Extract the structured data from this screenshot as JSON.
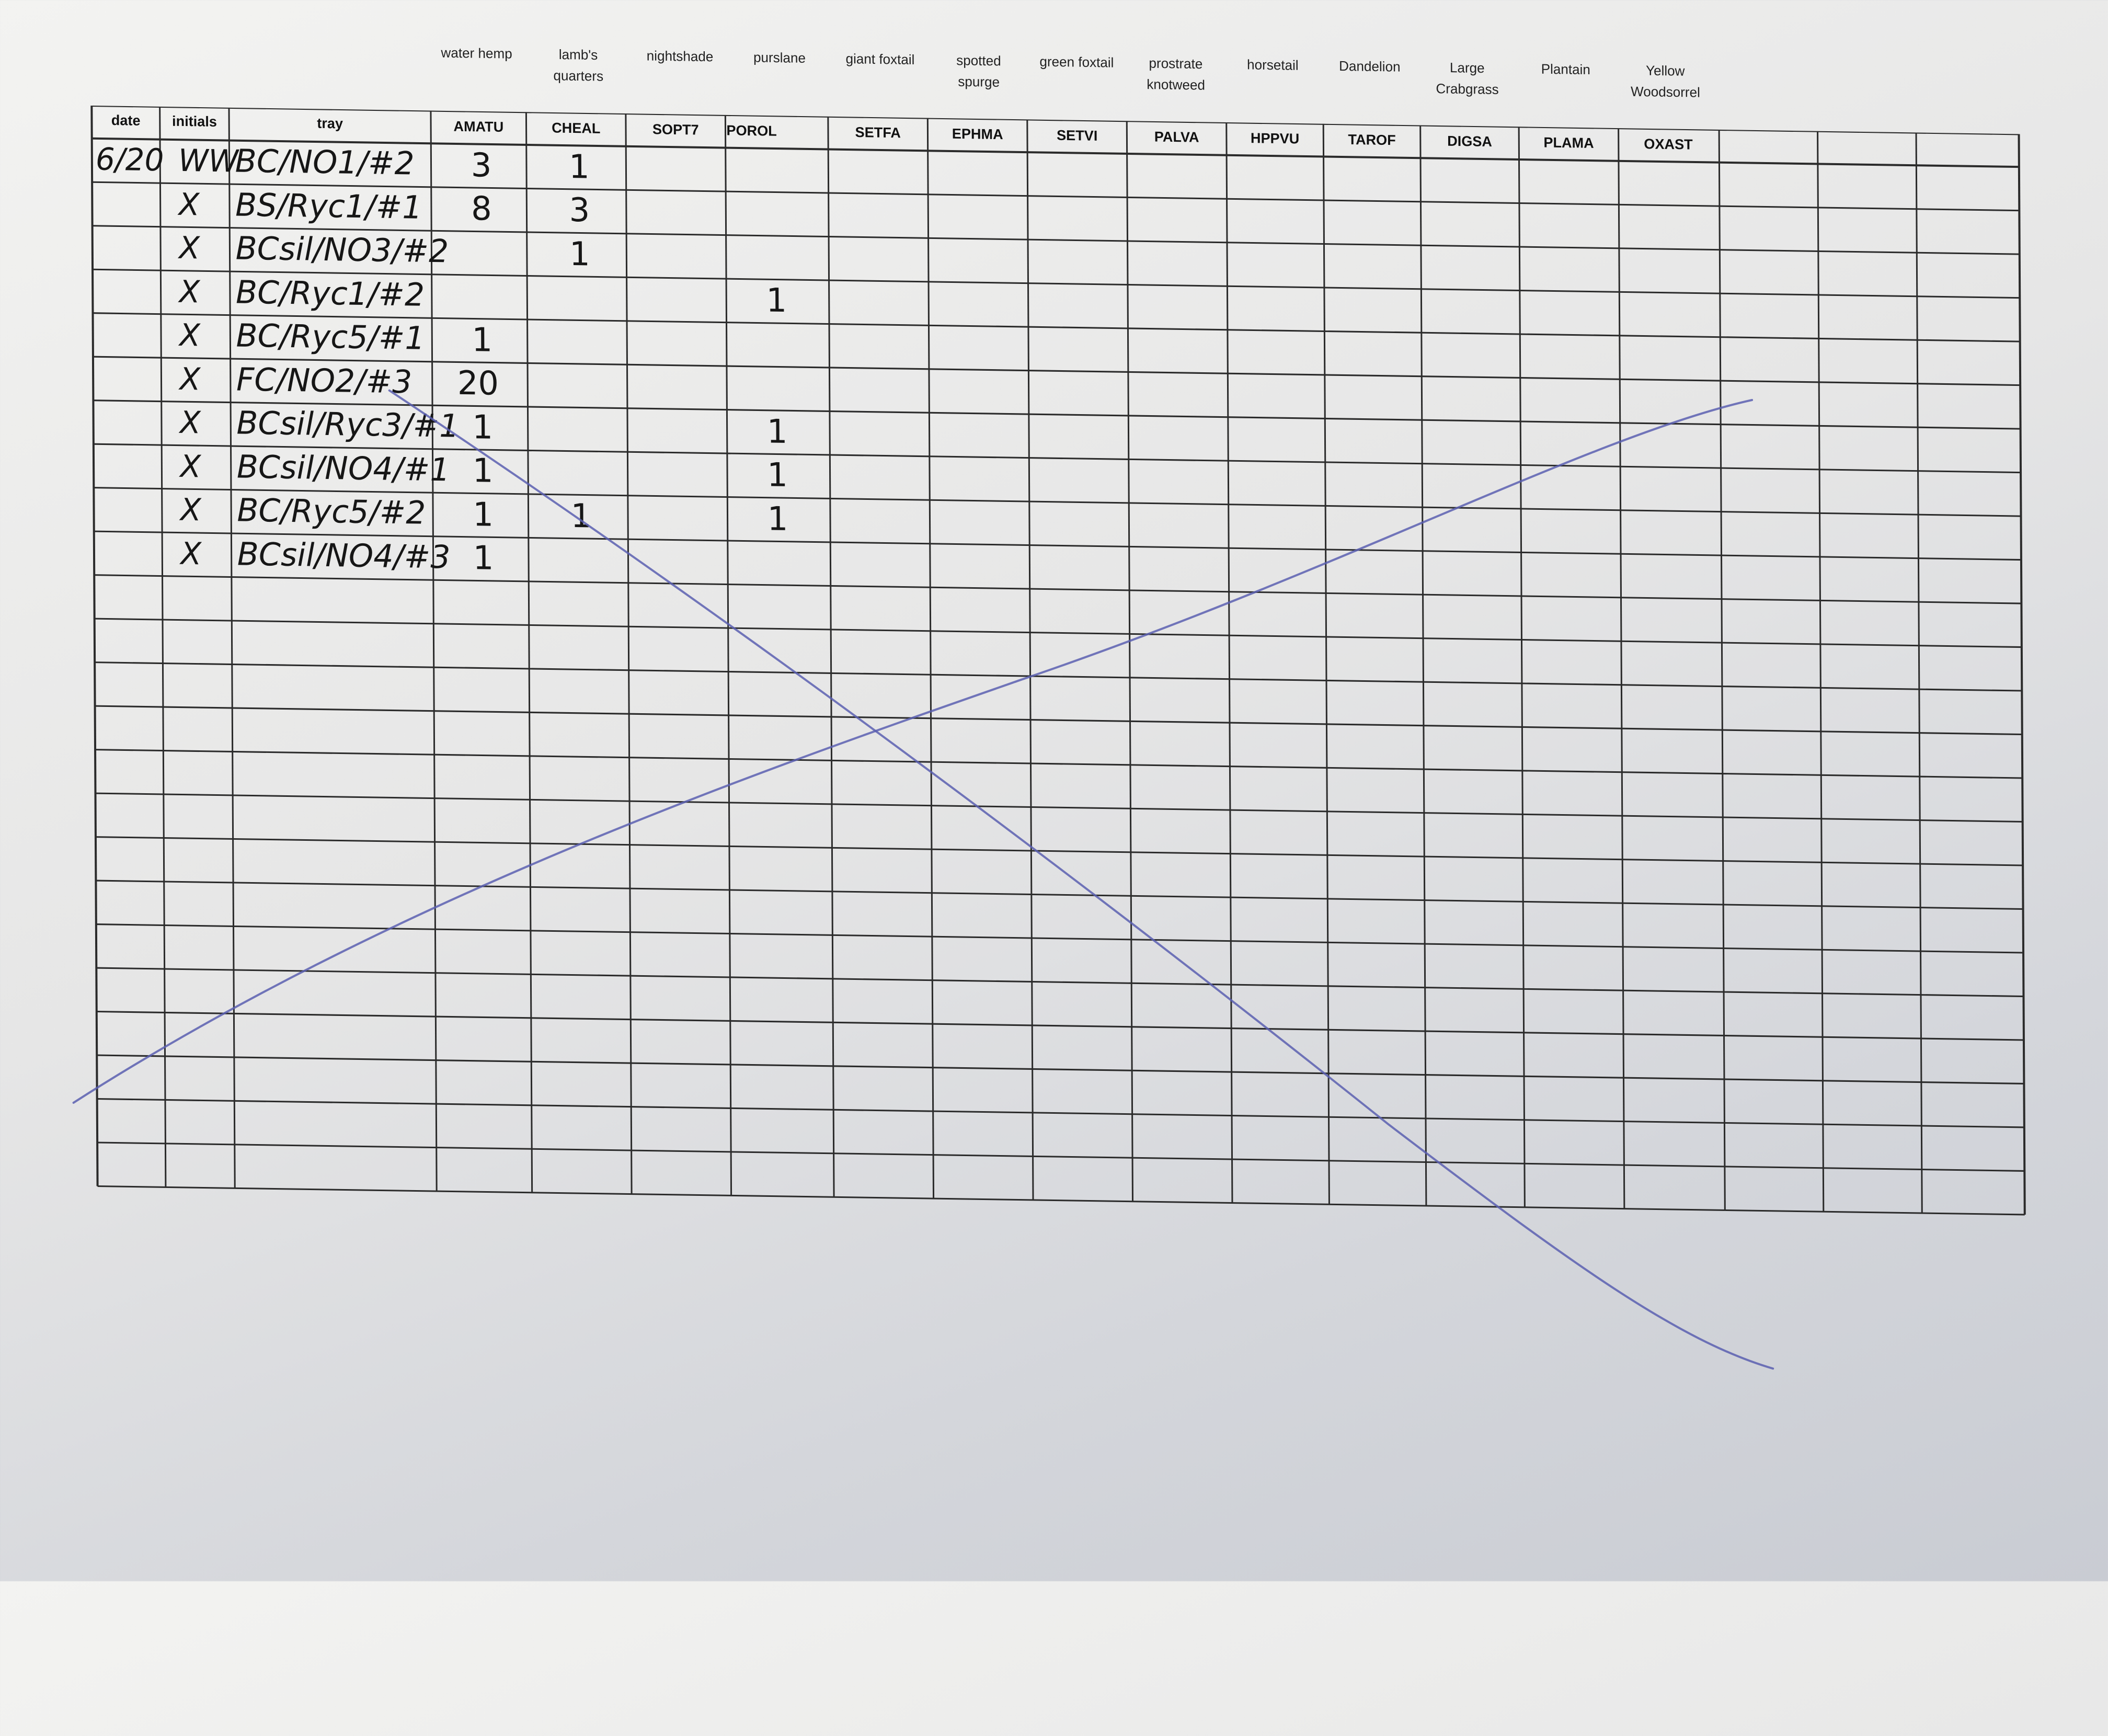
{
  "form": {
    "headers": [
      "date",
      "initials",
      "tray",
      "AMATU",
      "CHEAL",
      "SOPT7",
      "POROL",
      "SETFA",
      "EPHMA",
      "SETVI",
      "PALVA",
      "HPPVU",
      "TAROF",
      "DIGSA",
      "PLAMA",
      "OXAST"
    ],
    "plant_labels": [
      "water hemp",
      "lamb's\nquarters",
      "nightshade",
      "purslane",
      "giant foxtail",
      "spotted\nspurge",
      "green foxtail",
      "prostrate\nknotweed",
      "horsetail",
      "Dandelion",
      "Large\nCrabgrass",
      "Plantain",
      "Yellow\nWoodsorrel"
    ]
  },
  "entries": [
    {
      "date": "6/20",
      "initials": "WW",
      "tray": "BC/NO1/#2",
      "AMATU": "3",
      "CHEAL": "1",
      "POROL": ""
    },
    {
      "date": "",
      "initials": "X",
      "tray": "BS/Ryc1/#1",
      "AMATU": "8",
      "CHEAL": "3",
      "POROL": ""
    },
    {
      "date": "",
      "initials": "X",
      "tray": "BCsil/NO3/#2",
      "AMATU": "",
      "CHEAL": "1",
      "POROL": ""
    },
    {
      "date": "",
      "initials": "X",
      "tray": "BC/Ryc1/#2",
      "AMATU": "",
      "CHEAL": "",
      "POROL": "1"
    },
    {
      "date": "",
      "initials": "X",
      "tray": "BC/Ryc5/#1",
      "AMATU": "1",
      "CHEAL": "",
      "POROL": ""
    },
    {
      "date": "",
      "initials": "X",
      "tray": "FC/NO2/#3",
      "AMATU": "20",
      "CHEAL": "",
      "POROL": ""
    },
    {
      "date": "",
      "initials": "X",
      "tray": "BCsil/Ryc3/#1",
      "AMATU": "1",
      "CHEAL": "",
      "POROL": "1"
    },
    {
      "date": "",
      "initials": "X",
      "tray": "BCsil/NO4/#1",
      "AMATU": "1",
      "CHEAL": "",
      "POROL": "1"
    },
    {
      "date": "",
      "initials": "X",
      "tray": "BC/Ryc5/#2",
      "AMATU": "1",
      "CHEAL": "1",
      "POROL": "1"
    },
    {
      "date": "",
      "initials": "X",
      "tray": "BCsil/NO4/#3",
      "AMATU": "1",
      "CHEAL": "",
      "POROL": ""
    }
  ],
  "colors": {
    "ink": "#161616",
    "grid": "#2b2b2b",
    "pen_blue": "#5a5fb0"
  }
}
